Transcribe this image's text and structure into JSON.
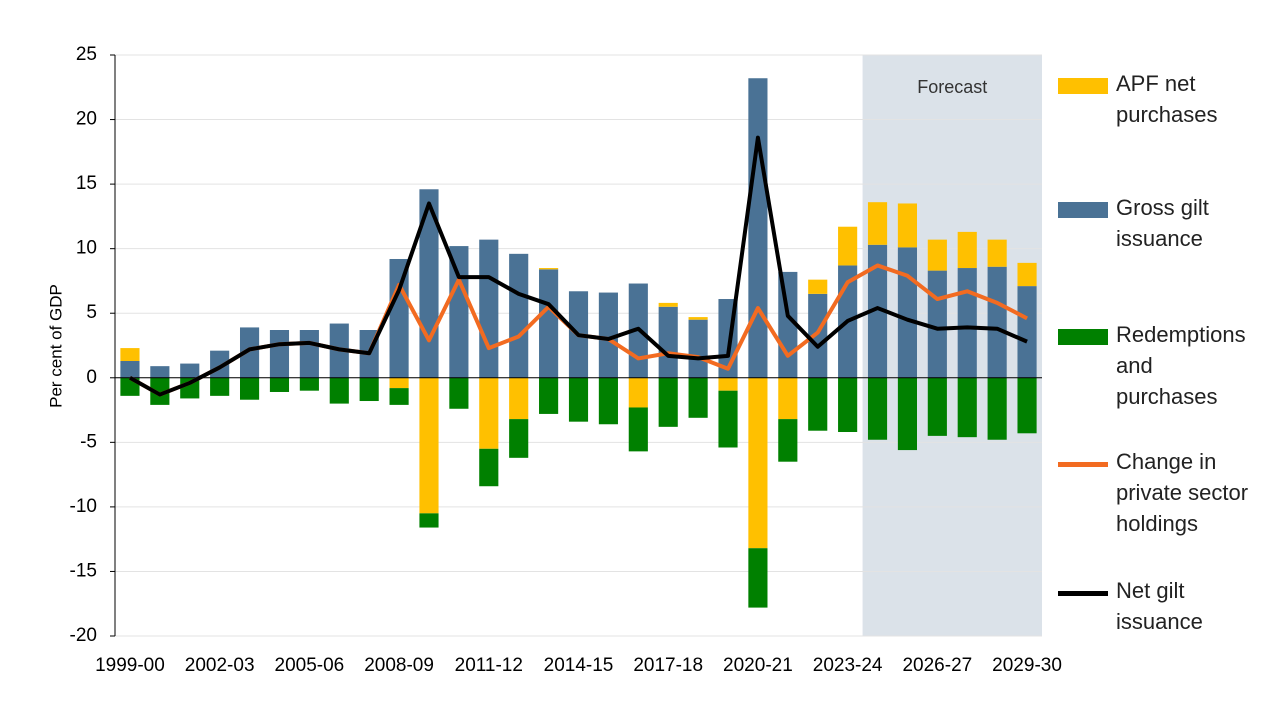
{
  "chart_data": {
    "type": "bar",
    "y_label": "Per cent of GDP",
    "categories": [
      "1999-00",
      null,
      null,
      "2002-03",
      null,
      null,
      "2005-06",
      null,
      null,
      "2008-09",
      null,
      null,
      "2011-12",
      null,
      null,
      "2014-15",
      null,
      null,
      "2017-18",
      null,
      null,
      "2020-21",
      null,
      null,
      "2023-24",
      null,
      null,
      "2026-27",
      null,
      null,
      "2029-30"
    ],
    "ylim": [
      -20,
      25
    ],
    "yticks": [
      -20,
      -15,
      -10,
      -5,
      0,
      5,
      10,
      15,
      20,
      25
    ],
    "shade": {
      "label": "Forecast",
      "start_index": 25,
      "color": "#dbe2e9"
    },
    "series": [
      {
        "name": "APF net purchases",
        "kind": "bar",
        "color": "#ffc000",
        "values": [
          1.0,
          0,
          0,
          0,
          0,
          0,
          0,
          0,
          0,
          -0.8,
          -10.5,
          0,
          -5.5,
          -3.2,
          0.1,
          0,
          0,
          -2.3,
          0.3,
          0.2,
          -1.0,
          -13.2,
          -3.2,
          1.1,
          3.0,
          3.3,
          3.4,
          2.4,
          2.8,
          2.1,
          1.8
        ]
      },
      {
        "name": "Gross gilt issuance",
        "kind": "bar",
        "color": "#4a7295",
        "values": [
          1.3,
          0.9,
          1.1,
          2.1,
          3.9,
          3.7,
          3.7,
          4.2,
          3.7,
          9.2,
          14.6,
          10.2,
          10.7,
          9.6,
          8.4,
          6.7,
          6.6,
          7.3,
          5.5,
          4.5,
          6.1,
          23.2,
          8.2,
          6.5,
          8.7,
          10.3,
          10.1,
          8.3,
          8.5,
          8.6,
          7.1
        ]
      },
      {
        "name": "Redemptions and purchases",
        "kind": "bar",
        "color": "#008000",
        "values": [
          -1.4,
          -2.1,
          -1.6,
          -1.4,
          -1.7,
          -1.1,
          -1.0,
          -2.0,
          -1.8,
          -1.3,
          -1.1,
          -2.4,
          -2.9,
          -3.0,
          -2.8,
          -3.4,
          -3.6,
          -3.4,
          -3.8,
          -3.1,
          -4.4,
          -4.6,
          -3.3,
          -4.1,
          -4.2,
          -4.8,
          -5.6,
          -4.5,
          -4.6,
          -4.8,
          -4.3
        ]
      },
      {
        "name": "Change in private sector holdings",
        "kind": "line",
        "color": "#f26b21",
        "values": [
          0,
          -1.3,
          -0.4,
          0.8,
          2.2,
          2.6,
          2.7,
          2.2,
          1.9,
          7.2,
          2.9,
          7.6,
          2.3,
          3.2,
          5.5,
          3.3,
          3.0,
          1.5,
          1.9,
          1.6,
          0.7,
          5.4,
          1.7,
          3.5,
          7.4,
          8.7,
          7.9,
          6.1,
          6.7,
          5.8,
          4.6
        ]
      },
      {
        "name": "Net gilt issuance",
        "kind": "line",
        "color": "#000000",
        "values": [
          0,
          -1.3,
          -0.4,
          0.8,
          2.2,
          2.6,
          2.7,
          2.2,
          1.9,
          6.8,
          13.5,
          7.8,
          7.8,
          6.5,
          5.7,
          3.3,
          3.0,
          3.8,
          1.7,
          1.5,
          1.7,
          18.6,
          4.8,
          2.4,
          4.4,
          5.4,
          4.5,
          3.8,
          3.9,
          3.8,
          2.8
        ]
      }
    ]
  }
}
